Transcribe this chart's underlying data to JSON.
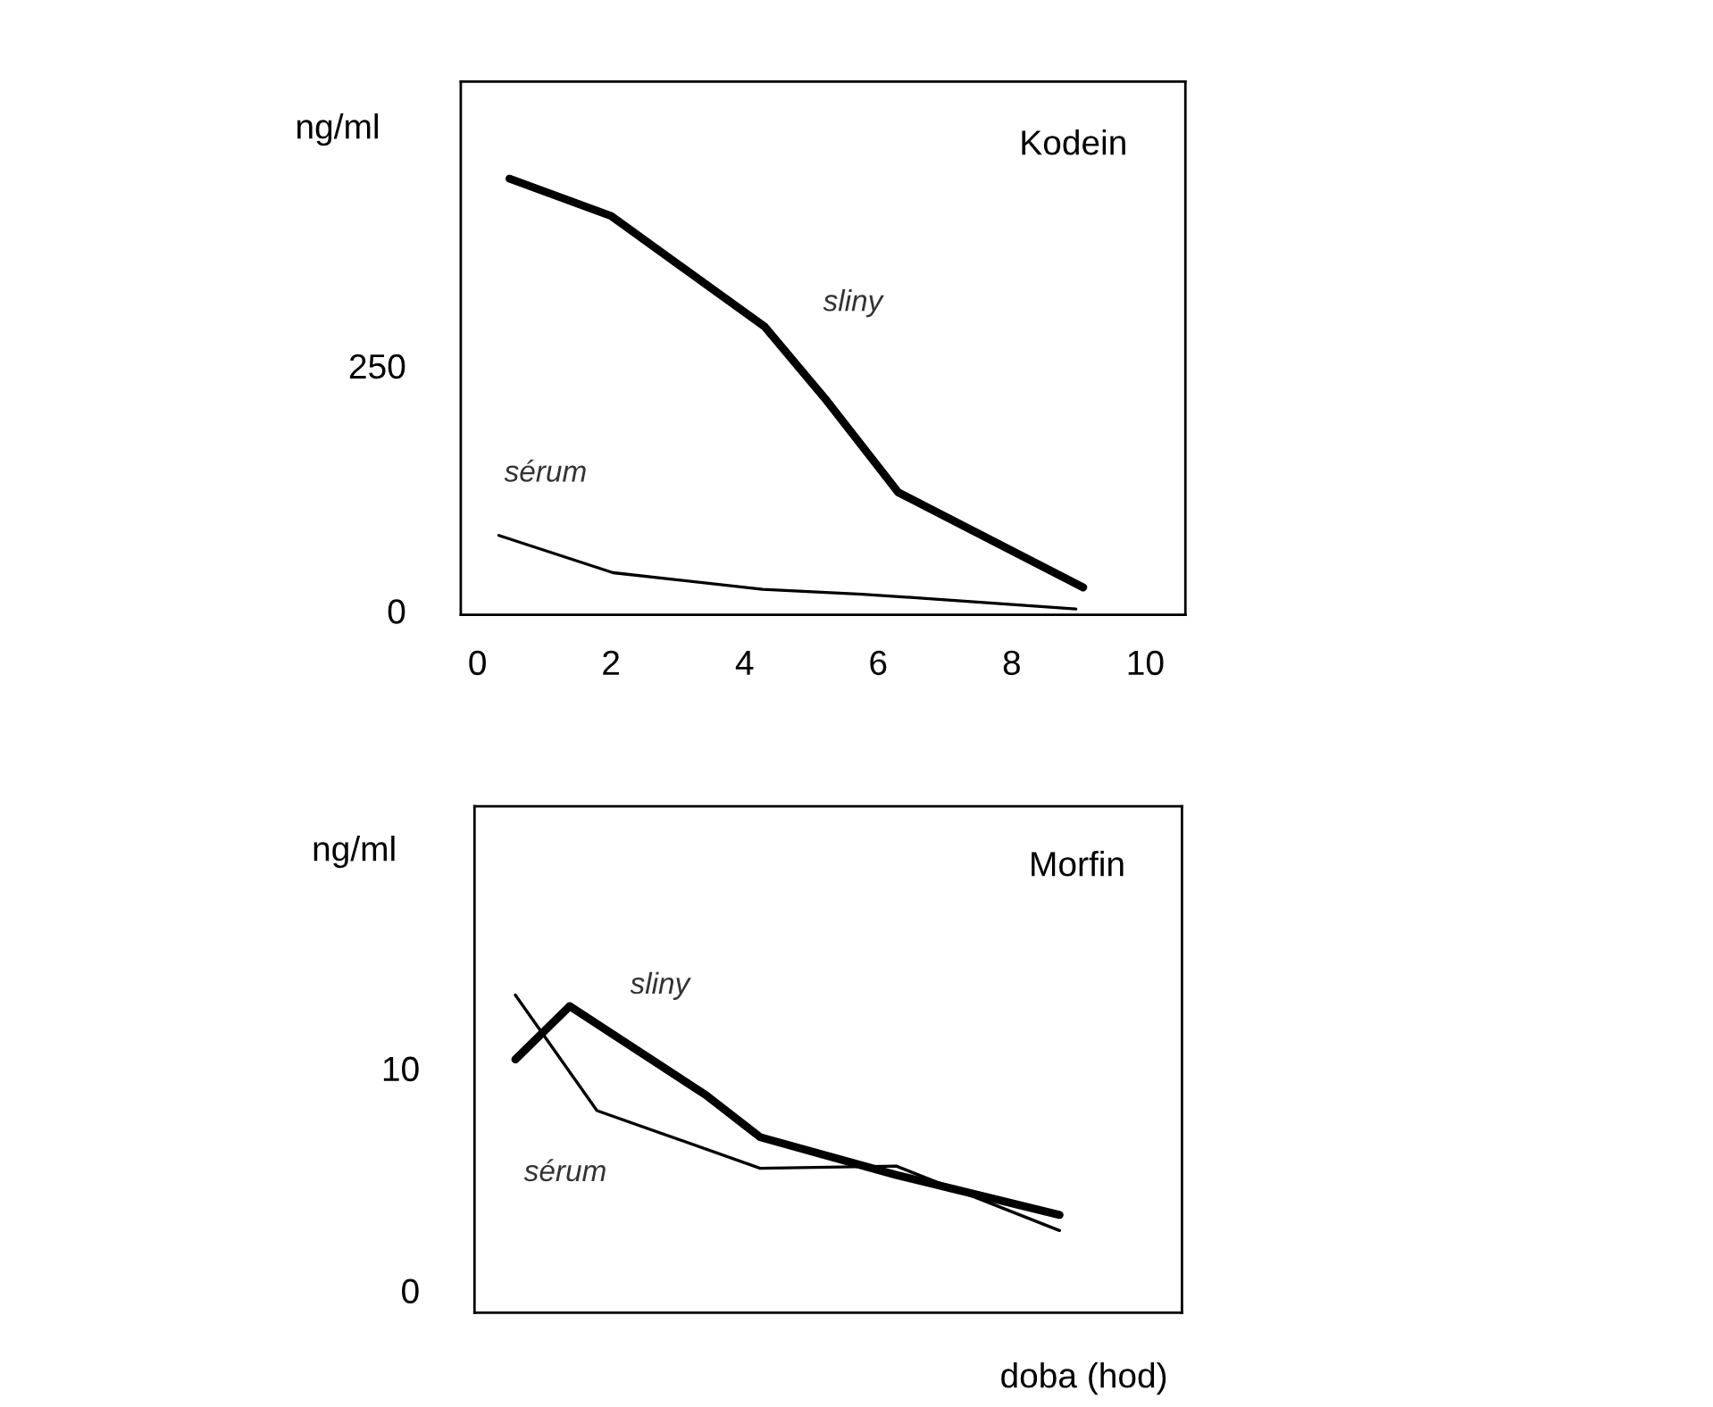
{
  "chart_data": [
    {
      "type": "line",
      "title": "Kodein",
      "ylabel": "ng/ml",
      "xlim": [
        -0.25,
        10.6
      ],
      "ylim": [
        -4,
        540
      ],
      "xticks": [
        0,
        2,
        4,
        6,
        8,
        10
      ],
      "yticks": [
        0,
        250
      ],
      "grid": false,
      "legend": false,
      "marker": "none",
      "line_style": "solid",
      "series": [
        {
          "name": "sliny",
          "color": "#000000",
          "x": [
            0.48,
            2.0,
            4.3,
            5.2,
            6.3,
            9.07
          ],
          "values": [
            441,
            403,
            290,
            217,
            121,
            24
          ]
        },
        {
          "name": "sérum",
          "color": "#000000",
          "x": [
            0.32,
            2.03,
            4.27,
            5.76,
            6.67,
            8.96
          ],
          "values": [
            77,
            39,
            22,
            17,
            13,
            2
          ]
        }
      ]
    },
    {
      "type": "line",
      "title": "Morfin",
      "ylabel": "ng/ml",
      "xlabel": "doba (hod)",
      "categories": [
        null,
        null,
        null,
        null,
        null,
        null,
        null,
        null,
        null,
        null,
        null,
        null,
        null,
        null,
        null,
        null,
        null,
        null,
        null,
        null,
        null,
        null,
        null,
        null,
        null,
        null
      ],
      "ylim": [
        -1,
        21.8
      ],
      "yticks": [
        0,
        10
      ],
      "tick_labels": "y",
      "grid": false,
      "legend": false,
      "marker": "none",
      "line_style": "solid",
      "series": [
        {
          "name": "sliny",
          "color": "#000000",
          "values": [
            null,
            10.4,
            null,
            12.8,
            null,
            null,
            null,
            null,
            8.8,
            null,
            6.9,
            null,
            null,
            null,
            null,
            5.2,
            null,
            null,
            null,
            null,
            null,
            3.4,
            null,
            null,
            null,
            null
          ]
        },
        {
          "name": "sérum",
          "color": "#000000",
          "values": [
            null,
            13.3,
            null,
            null,
            8.1,
            null,
            null,
            null,
            null,
            null,
            5.5,
            null,
            null,
            null,
            null,
            5.6,
            null,
            null,
            null,
            null,
            null,
            2.7,
            null,
            null,
            null,
            null
          ]
        }
      ]
    }
  ]
}
